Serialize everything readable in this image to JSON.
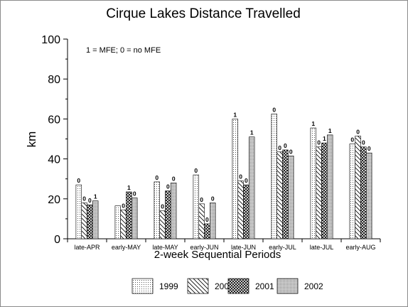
{
  "chart_data": {
    "type": "bar",
    "title": "Cirque Lakes Distance Travelled",
    "xlabel": "2-week Sequential Periods",
    "ylabel": "km",
    "annotation": "1 = MFE; 0 = no MFE",
    "ylim": [
      0,
      100
    ],
    "yticks": [
      0,
      20,
      40,
      60,
      80,
      100
    ],
    "grid": false,
    "legend_position": "bottom",
    "categories": [
      "late-APR",
      "early-MAY",
      "late-MAY",
      "early-JUN",
      "late-JUN",
      "early-JUL",
      "late-JUL",
      "early-AUG"
    ],
    "series": [
      {
        "name": "1999",
        "pattern": "dots",
        "values": [
          27,
          16.5,
          28.5,
          32,
          60,
          62.5,
          55.5,
          47.5
        ],
        "labels": [
          "0",
          "",
          "0",
          "0",
          "1",
          "0",
          "1",
          "0"
        ]
      },
      {
        "name": "2000",
        "pattern": "diagonal-down",
        "values": [
          18,
          14.5,
          14,
          17.5,
          29,
          43.5,
          46,
          51.5
        ],
        "labels": [
          "0",
          "0",
          "0",
          "0",
          "0",
          "0",
          "0",
          "0"
        ]
      },
      {
        "name": "2001",
        "pattern": "crosshatch",
        "values": [
          17,
          23.5,
          24,
          7.5,
          27,
          44.5,
          48,
          46
        ],
        "labels": [
          "0",
          "1",
          "0",
          "0",
          "0",
          "0",
          "1",
          "0"
        ]
      },
      {
        "name": "2002",
        "pattern": "fine-dots",
        "values": [
          19,
          20.5,
          28,
          18,
          51,
          41.5,
          52,
          43
        ],
        "labels": [
          "1",
          "0",
          "0",
          "0",
          "1",
          "0",
          "1",
          "0"
        ]
      }
    ]
  }
}
